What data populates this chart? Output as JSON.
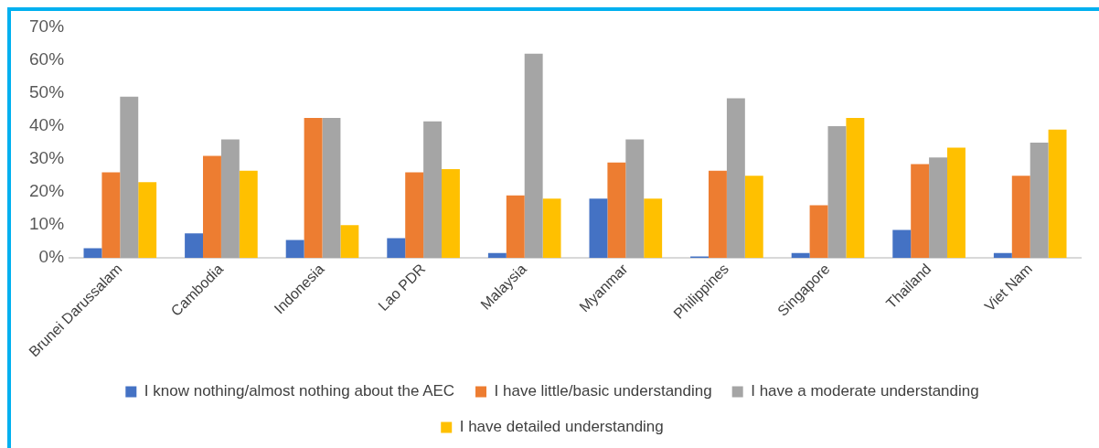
{
  "chart_data": {
    "type": "bar",
    "categories": [
      "Brunei Darussalam",
      "Cambodia",
      "Indonesia",
      "Lao PDR",
      "Malaysia",
      "Myanmar",
      "Philippines",
      "Singapore",
      "Thailand",
      "Viet Nam"
    ],
    "series": [
      {
        "name": "I know nothing/almost nothing about the AEC",
        "color": "#4472c4",
        "values": [
          3,
          7.5,
          5.5,
          6,
          1.5,
          18,
          0.5,
          1.5,
          8.5,
          1.5
        ]
      },
      {
        "name": "I have little/basic understanding",
        "color": "#ed7d31",
        "values": [
          26,
          31,
          42.5,
          26,
          19,
          29,
          26.5,
          16,
          28.5,
          25
        ]
      },
      {
        "name": "I have a moderate understanding",
        "color": "#a5a5a5",
        "values": [
          49,
          36,
          42.5,
          41.5,
          62,
          36,
          48.5,
          40,
          30.5,
          35
        ]
      },
      {
        "name": "I have detailed understanding",
        "color": "#ffc000",
        "values": [
          23,
          26.5,
          10,
          27,
          18,
          18,
          25,
          42.5,
          33.5,
          39
        ]
      }
    ],
    "ylim": [
      0,
      70
    ],
    "yticks": [
      {
        "value": 0,
        "label": "0%"
      },
      {
        "value": 10,
        "label": "10%"
      },
      {
        "value": 20,
        "label": "20%"
      },
      {
        "value": 30,
        "label": "30%"
      },
      {
        "value": 40,
        "label": "40%"
      },
      {
        "value": 50,
        "label": "50%"
      },
      {
        "value": 60,
        "label": "60%"
      },
      {
        "value": 70,
        "label": "70%"
      }
    ],
    "grid": false,
    "legend": "bottom"
  }
}
